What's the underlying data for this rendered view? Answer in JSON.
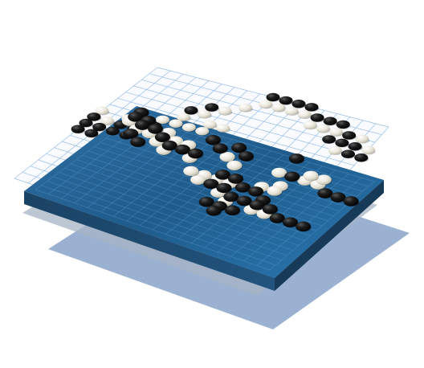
{
  "illustration": {
    "subject": "layered-go-board",
    "layer_count": 3
  },
  "colors": {
    "board_top": "#1f5c8c",
    "board_top_light": "#3f86b8",
    "board_front": "#1e4c72",
    "board_side": "#163a58",
    "grid_line_on_board": "#4f8fc4",
    "paper_grid_line": "#8fb7e6",
    "shadow_layer_1": "#9bb0c8",
    "shadow_layer_2": "#7d9ac4",
    "black_stone": "#1a1a1a",
    "white_stone": "#ece9dc"
  },
  "boards": [
    {
      "name": "upper-sheet",
      "grid": 19
    },
    {
      "name": "main-board",
      "grid": 19
    }
  ],
  "stones": {
    "upper_sheet": {
      "black": [
        [
          0,
          8
        ],
        [
          0,
          9
        ],
        [
          0,
          10
        ],
        [
          1,
          9
        ],
        [
          1,
          10
        ],
        [
          2,
          8
        ],
        [
          2,
          9
        ],
        [
          3,
          8
        ],
        [
          3,
          9
        ],
        [
          4,
          7
        ],
        [
          5,
          4
        ],
        [
          6,
          3
        ],
        [
          13,
          1
        ],
        [
          14,
          1
        ],
        [
          15,
          1
        ],
        [
          15,
          3
        ],
        [
          16,
          2
        ],
        [
          16,
          3
        ],
        [
          17,
          3
        ],
        [
          17,
          4
        ],
        [
          18,
          4
        ],
        [
          9,
          0
        ],
        [
          10,
          0
        ],
        [
          11,
          0
        ],
        [
          12,
          0
        ]
      ],
      "white": [
        [
          0,
          7
        ],
        [
          1,
          8
        ],
        [
          2,
          7
        ],
        [
          3,
          7
        ],
        [
          4,
          6
        ],
        [
          5,
          5
        ],
        [
          5,
          6
        ],
        [
          6,
          4
        ],
        [
          7,
          3
        ],
        [
          7,
          5
        ],
        [
          8,
          2
        ],
        [
          9,
          1
        ],
        [
          12,
          1
        ],
        [
          13,
          2
        ],
        [
          14,
          2
        ],
        [
          15,
          2
        ],
        [
          16,
          4
        ],
        [
          17,
          2
        ],
        [
          18,
          3
        ],
        [
          6,
          6
        ],
        [
          7,
          6
        ],
        [
          8,
          5
        ],
        [
          10,
          1
        ],
        [
          11,
          1
        ]
      ]
    },
    "main_board": {
      "black": [
        [
          0,
          0
        ],
        [
          0,
          1
        ],
        [
          1,
          1
        ],
        [
          1,
          2
        ],
        [
          2,
          2
        ],
        [
          3,
          3
        ],
        [
          4,
          4
        ],
        [
          5,
          4
        ],
        [
          6,
          4
        ],
        [
          1,
          4
        ],
        [
          2,
          5
        ],
        [
          6,
          1
        ],
        [
          7,
          2
        ],
        [
          8,
          1
        ],
        [
          9,
          2
        ],
        [
          9,
          6
        ],
        [
          9,
          8
        ],
        [
          10,
          6
        ],
        [
          10,
          8
        ],
        [
          11,
          7
        ],
        [
          11,
          9
        ],
        [
          12,
          7
        ],
        [
          12,
          9
        ],
        [
          13,
          8
        ],
        [
          13,
          9
        ],
        [
          14,
          9
        ],
        [
          15,
          10
        ],
        [
          16,
          10
        ],
        [
          17,
          10
        ],
        [
          10,
          11
        ],
        [
          11,
          11
        ],
        [
          12,
          11
        ],
        [
          16,
          4
        ],
        [
          17,
          4
        ],
        [
          18,
          4
        ],
        [
          13,
          3
        ],
        [
          12,
          0
        ],
        [
          11,
          12
        ]
      ],
      "white": [
        [
          0,
          2
        ],
        [
          1,
          3
        ],
        [
          2,
          3
        ],
        [
          3,
          2
        ],
        [
          3,
          4
        ],
        [
          4,
          3
        ],
        [
          5,
          3
        ],
        [
          4,
          5
        ],
        [
          6,
          5
        ],
        [
          8,
          3
        ],
        [
          9,
          4
        ],
        [
          9,
          7
        ],
        [
          8,
          7
        ],
        [
          8,
          8
        ],
        [
          10,
          7
        ],
        [
          12,
          6
        ],
        [
          13,
          5
        ],
        [
          14,
          3
        ],
        [
          15,
          3
        ],
        [
          15,
          2
        ],
        [
          14,
          2
        ],
        [
          10,
          9
        ],
        [
          11,
          10
        ],
        [
          13,
          10
        ],
        [
          14,
          10
        ],
        [
          12,
          3
        ],
        [
          7,
          7
        ],
        [
          13,
          6
        ]
      ]
    }
  }
}
